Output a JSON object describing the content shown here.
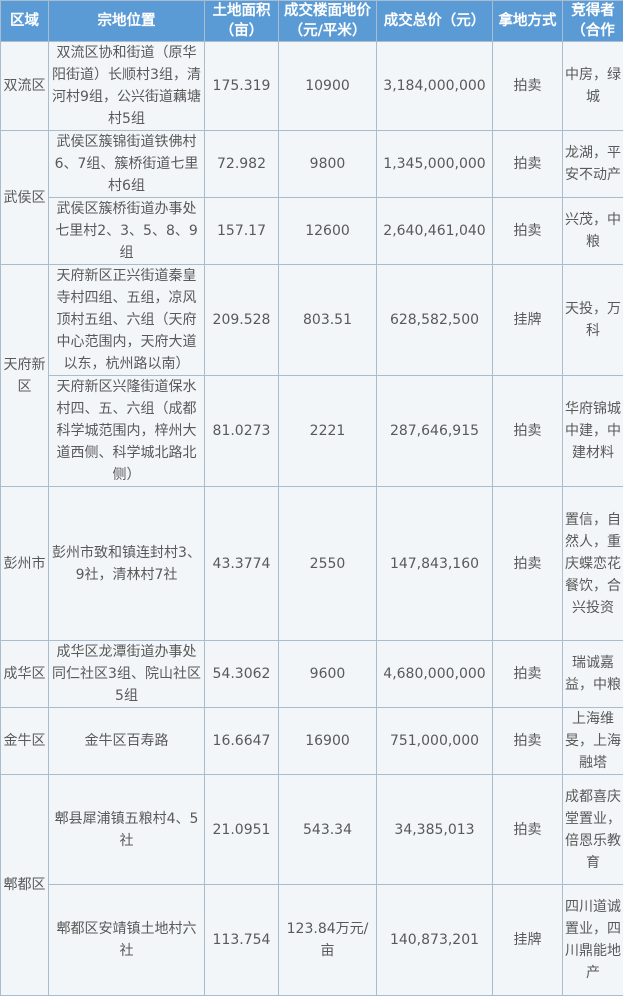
{
  "headers": [
    "区域",
    "宗地位置",
    "土地面积（亩）",
    "成交楼面地价（元/平米）",
    "成交总价（元）",
    "拿地方式",
    "竞得者（合作"
  ],
  "rows": [
    {
      "district": "双流区",
      "location": "双流区协和街道（原华阳街道）长顺村3组，清河村9组，公兴街道藕塘村5组",
      "area": "175.319",
      "floor_price": "10900",
      "total": "3,184,000,000",
      "method": "拍卖",
      "winner": "中房，绿城"
    },
    {
      "district": "武侯区",
      "location": "武侯区簇锦街道铁佛村6、7组、簇桥街道七里村6组",
      "area": "72.982",
      "floor_price": "9800",
      "total": "1,345,000,000",
      "method": "拍卖",
      "winner": "龙湖，平安不动产"
    },
    {
      "district": "",
      "location": "武侯区簇桥街道办事处七里村2、3、5、8、9组",
      "area": "157.17",
      "floor_price": "12600",
      "total": "2,640,461,040",
      "method": "拍卖",
      "winner": "兴茂，中粮"
    },
    {
      "district": "天府新区",
      "location": "天府新区正兴街道秦皇寺村四组、五组，凉风顶村五组、六组（天府中心范围内，天府大道以东，杭州路以南）",
      "area": "209.528",
      "floor_price": "803.51",
      "total": "628,582,500",
      "method": "挂牌",
      "winner": "天投，万科"
    },
    {
      "district": "",
      "location": "天府新区兴隆街道保水村四、五、六组（成都科学城范围内，梓州大道西侧、科学城北路北侧）",
      "area": "81.0273",
      "floor_price": "2221",
      "total": "287,646,915",
      "method": "拍卖",
      "winner": "华府锦城中建，中建材料"
    },
    {
      "district": "彭州市",
      "location": "彭州市致和镇连封村3、9社，清林村7社",
      "area": "43.3774",
      "floor_price": "2550",
      "total": "147,843,160",
      "method": "拍卖",
      "winner": "置信，自然人，重庆蝶恋花餐饮，合兴投资"
    },
    {
      "district": "成华区",
      "location": "成华区龙潭街道办事处同仁社区3组、院山社区5组",
      "area": "54.3062",
      "floor_price": "9600",
      "total": "4,680,000,000",
      "method": "拍卖",
      "winner": "瑞诚嘉益，中粮"
    },
    {
      "district": "金牛区",
      "location": "金牛区百寿路",
      "area": "16.6647",
      "floor_price": "16900",
      "total": "751,000,000",
      "method": "拍卖",
      "winner": "上海维旻，上海融塔"
    },
    {
      "district": "郫都区",
      "location": "郫县犀浦镇五粮村4、5社",
      "area": "21.0951",
      "floor_price": "543.34",
      "total": "34,385,013",
      "method": "拍卖",
      "winner": "成都喜庆堂置业，倍恩乐教育"
    },
    {
      "district": "",
      "location": "郫都区安靖镇土地村六社",
      "area": "113.754",
      "floor_price": "123.84万元/亩",
      "total": "140,873,201",
      "method": "挂牌",
      "winner": "四川道诚置业，四川鼎能地产"
    }
  ],
  "colors": {
    "header_bg": "#5b9bd5",
    "cell_bg": "#f3f6f9",
    "border": "#a9bcd0"
  }
}
